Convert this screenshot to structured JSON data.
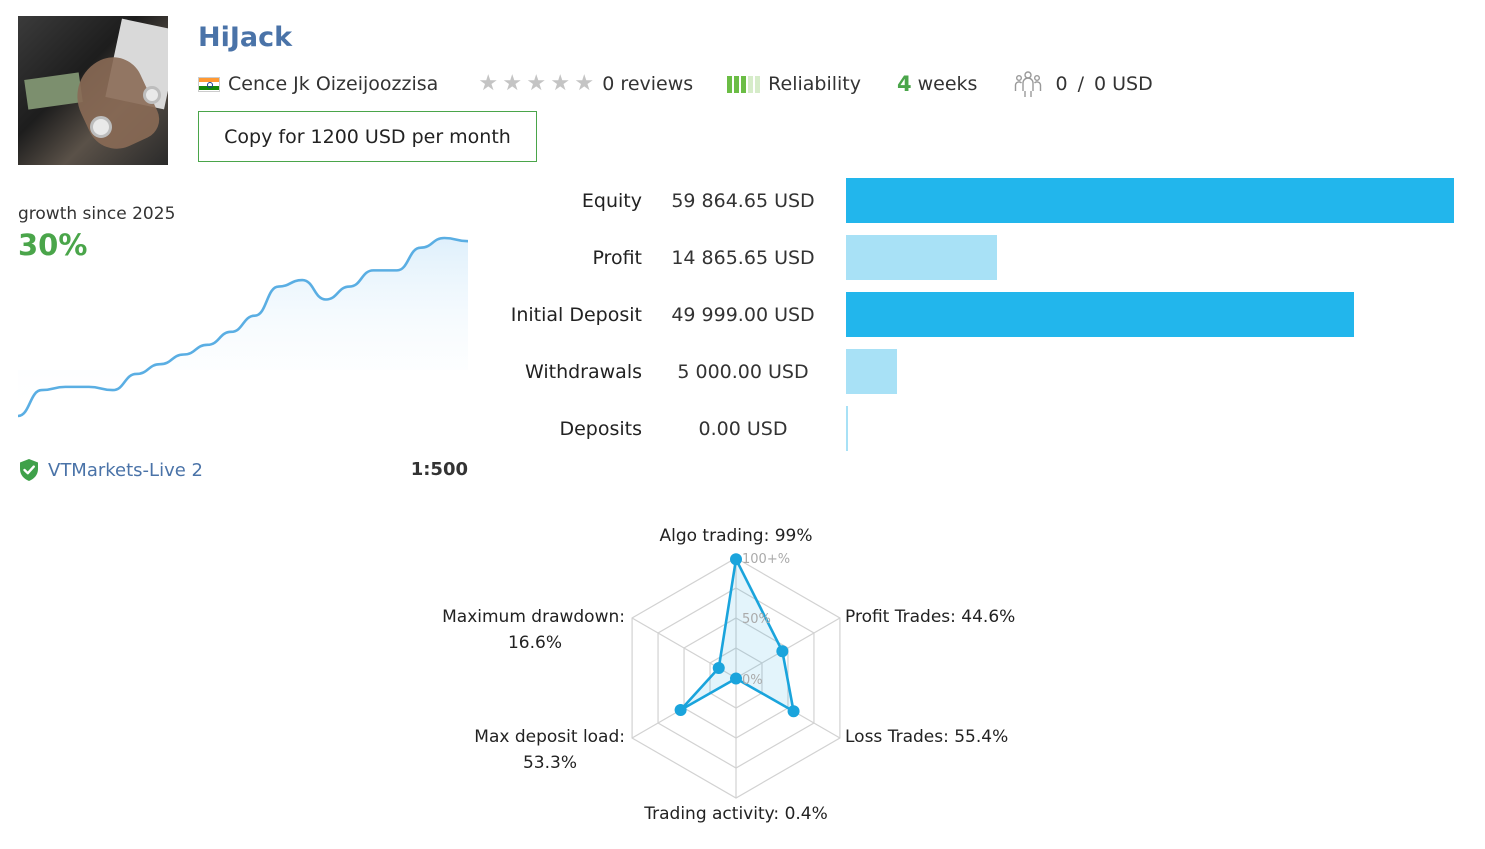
{
  "header": {
    "title": "HiJack",
    "author": "Cence Jk Oizeijoozzisa",
    "reviews": "0 reviews",
    "rating_stars": 0,
    "reliability_label": "Reliability",
    "reliability_level": 3,
    "weeks_number": "4",
    "weeks_label": "weeks",
    "subscribers": "0",
    "funds_separator": "/",
    "funds": "0 USD",
    "copy_button": "Copy for 1200 USD per month"
  },
  "growth": {
    "label": "growth since 2025",
    "value": "30%",
    "line_color": "#5aaee3",
    "points": [
      0,
      8,
      9,
      9,
      8,
      13,
      16,
      19,
      22,
      26,
      31,
      40,
      42,
      36,
      40,
      45,
      45,
      52,
      55,
      54
    ]
  },
  "account": {
    "server": "VTMarkets-Live 2",
    "leverage": "1:500"
  },
  "financials": {
    "scale_max": 59864.65,
    "rows": [
      {
        "label": "Equity",
        "value_text": "59 864.65 USD",
        "value": 59864.65,
        "color": "#22b6ec"
      },
      {
        "label": "Profit",
        "value_text": "14 865.65 USD",
        "value": 14865.65,
        "color": "#a8e1f6"
      },
      {
        "label": "Initial Deposit",
        "value_text": "49 999.00 USD",
        "value": 49999.0,
        "color": "#22b6ec"
      },
      {
        "label": "Withdrawals",
        "value_text": "5 000.00 USD",
        "value": 5000.0,
        "color": "#a8e1f6"
      },
      {
        "label": "Deposits",
        "value_text": "0.00 USD",
        "value": 0.0,
        "color": "#a8e1f6"
      }
    ]
  },
  "radar": {
    "ring_labels": [
      "100+%",
      "50%",
      "0%"
    ],
    "axes": [
      {
        "label": "Algo trading: 99%",
        "value": 99
      },
      {
        "label": "Profit Trades: 44.6%",
        "value": 44.6
      },
      {
        "label": "Loss Trades: 55.4%",
        "value": 55.4
      },
      {
        "label": "Trading activity: 0.4%",
        "value": 0.4
      },
      {
        "label_line1": "Max deposit load:",
        "label_line2": "53.3%",
        "value": 53.3
      },
      {
        "label_line1": "Maximum drawdown:",
        "label_line2": "16.6%",
        "value": 16.6
      }
    ],
    "accent": "#1aa4dc"
  }
}
